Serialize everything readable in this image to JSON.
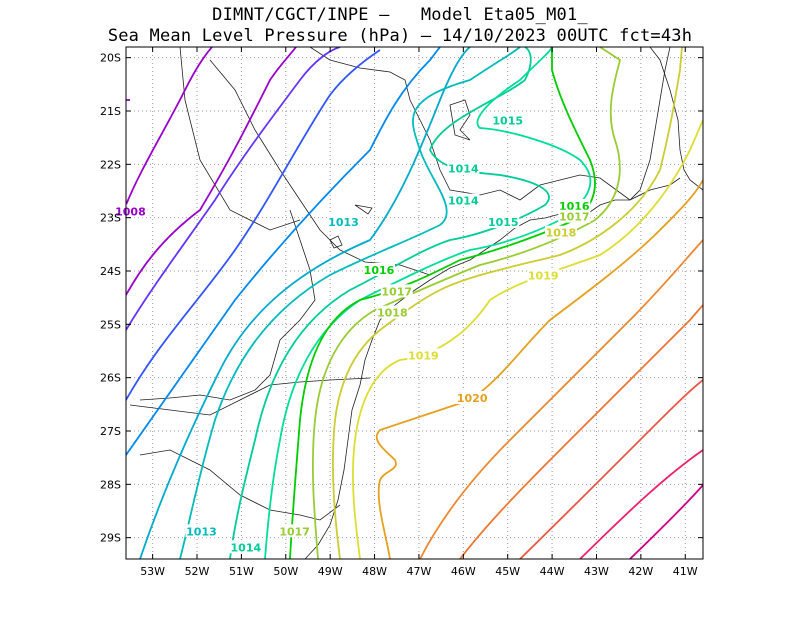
{
  "title_line1": "DIMNT/CGCT/INPE –   Model Eta05_M01_",
  "title_line2": "Sea Mean Level Pressure (hPa) – 14/10/2023 00UTC fct=43h",
  "chart_data": {
    "type": "contour",
    "variable": "Sea Mean Level Pressure (hPa)",
    "lon_ticks": [
      "53W",
      "52W",
      "51W",
      "50W",
      "49W",
      "48W",
      "47W",
      "46W",
      "45W",
      "44W",
      "43W",
      "42W",
      "41W"
    ],
    "lat_ticks": [
      "20S",
      "21S",
      "22S",
      "23S",
      "24S",
      "25S",
      "26S",
      "27S",
      "28S",
      "29S"
    ],
    "lon_range": [
      -53.6,
      -40.6
    ],
    "lat_range": [
      -29.4,
      -19.8
    ],
    "grid": "dotted",
    "contour_labels": [
      {
        "text": "1008",
        "lon": -53.5,
        "lat": -22.9,
        "color": "#9900cc"
      },
      {
        "text": "1013",
        "lon": -48.7,
        "lat": -23.1,
        "color": "#00bbbb"
      },
      {
        "text": "1013",
        "lon": -51.9,
        "lat": -28.9,
        "color": "#00bbbb"
      },
      {
        "text": "1014",
        "lon": -46.0,
        "lat": -22.1,
        "color": "#00cc99"
      },
      {
        "text": "1014",
        "lon": -46.0,
        "lat": -22.7,
        "color": "#00cc99"
      },
      {
        "text": "1014",
        "lon": -50.9,
        "lat": -29.2,
        "color": "#00cc99"
      },
      {
        "text": "1015",
        "lon": -45.0,
        "lat": -21.2,
        "color": "#00cc99"
      },
      {
        "text": "1015",
        "lon": -45.1,
        "lat": -23.1,
        "color": "#00cc99"
      },
      {
        "text": "1016",
        "lon": -47.9,
        "lat": -24.0,
        "color": "#00cc00"
      },
      {
        "text": "1016",
        "lon": -43.5,
        "lat": -22.8,
        "color": "#00cc00"
      },
      {
        "text": "1017",
        "lon": -47.5,
        "lat": -24.4,
        "color": "#99cc33"
      },
      {
        "text": "1017",
        "lon": -43.5,
        "lat": -23.0,
        "color": "#99cc33"
      },
      {
        "text": "1017",
        "lon": -49.8,
        "lat": -28.9,
        "color": "#99cc33"
      },
      {
        "text": "1018",
        "lon": -47.6,
        "lat": -24.8,
        "color": "#99cc33"
      },
      {
        "text": "1018",
        "lon": -43.8,
        "lat": -23.3,
        "color": "#cccc33"
      },
      {
        "text": "1019",
        "lon": -46.9,
        "lat": -25.6,
        "color": "#dddd33"
      },
      {
        "text": "1019",
        "lon": -44.2,
        "lat": -24.1,
        "color": "#dddd33"
      },
      {
        "text": "1020",
        "lon": -45.8,
        "lat": -26.4,
        "color": "#e6a020"
      }
    ]
  }
}
